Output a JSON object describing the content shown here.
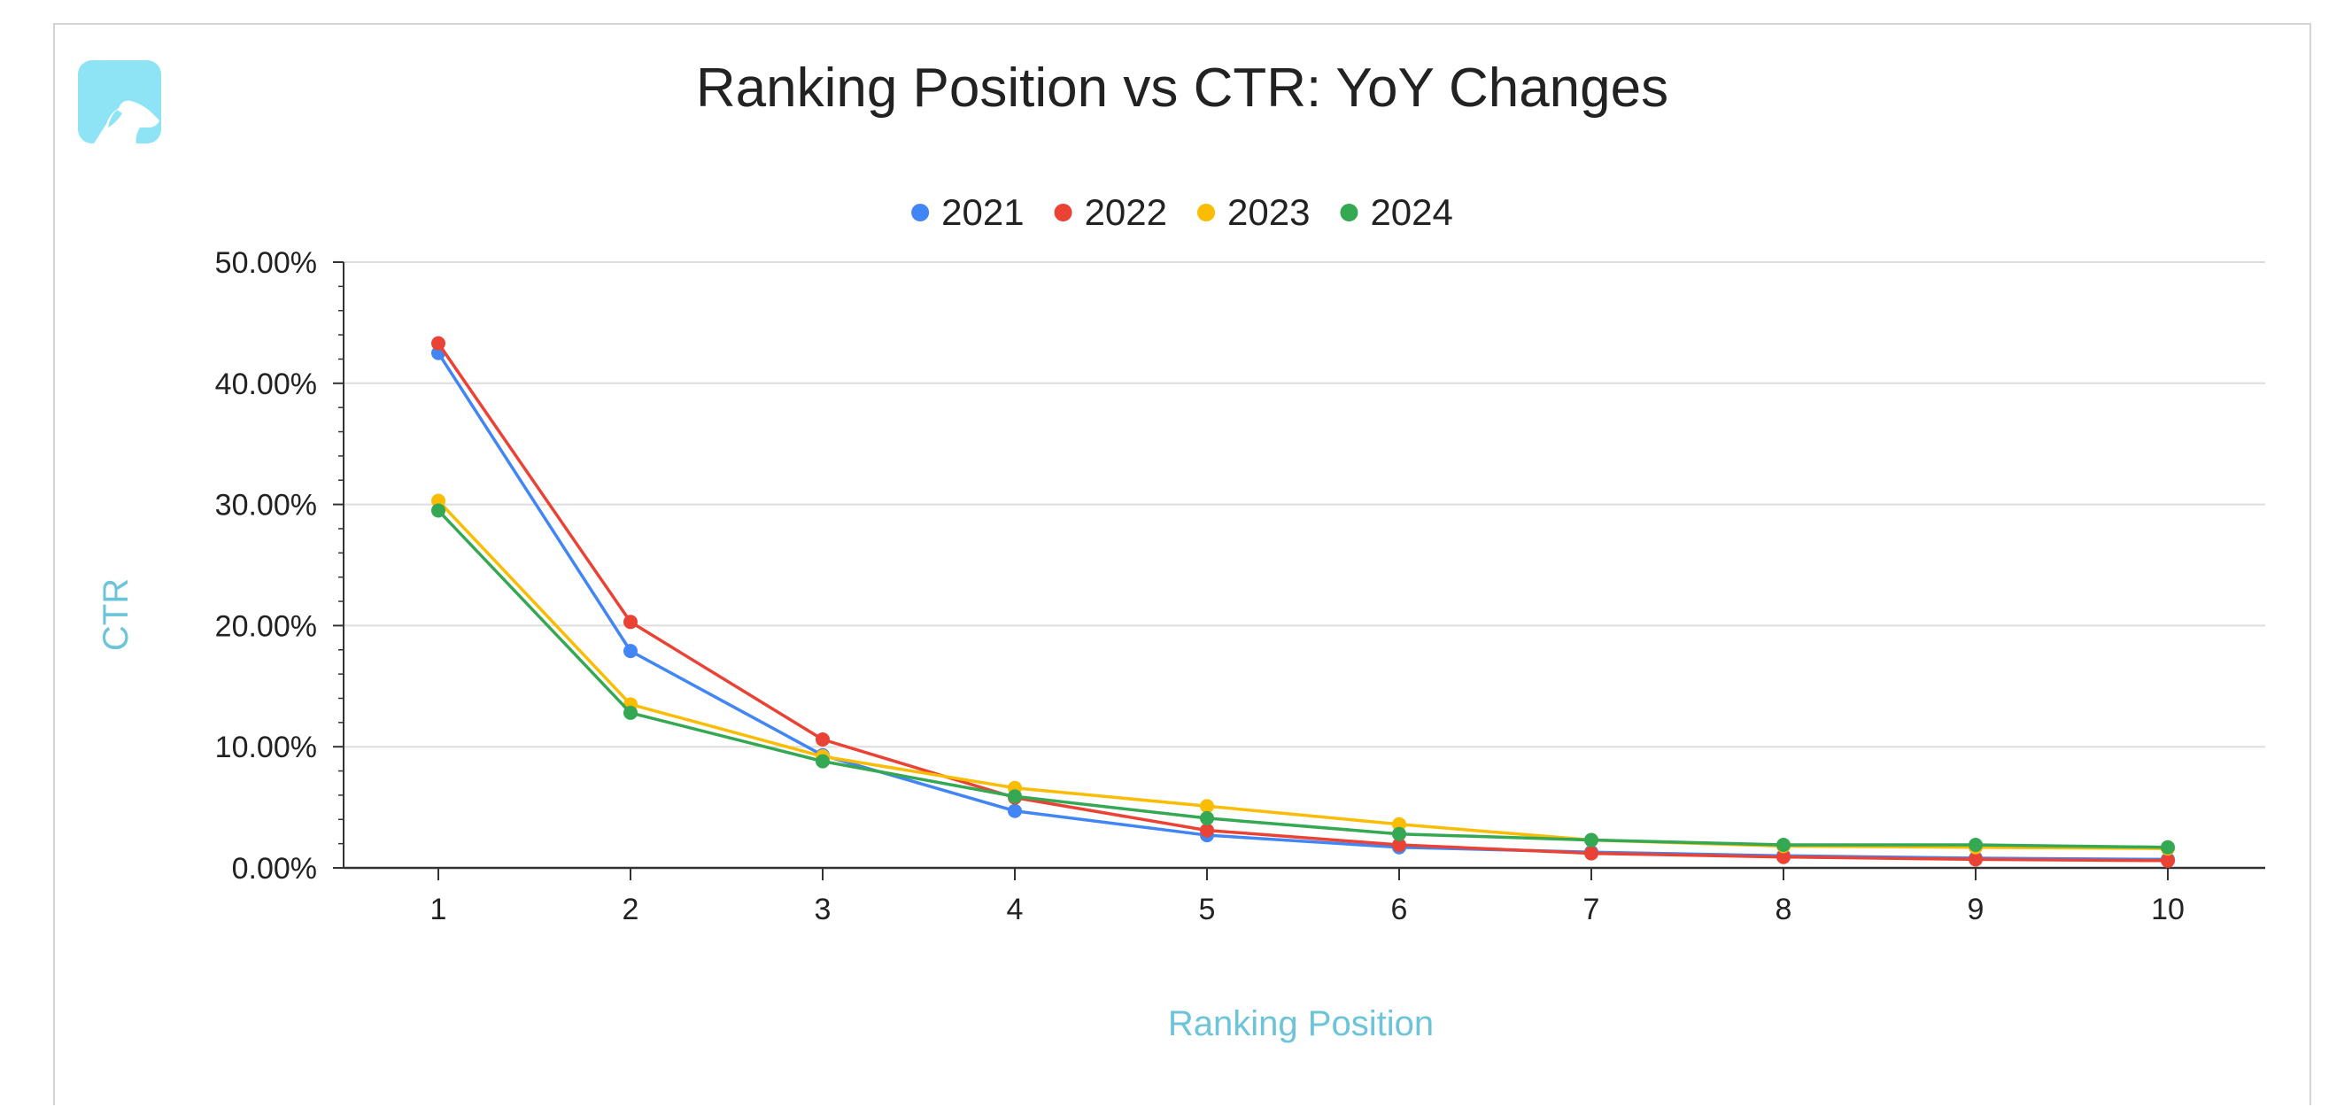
{
  "chart_data": {
    "type": "line",
    "title": "Ranking Position vs CTR: YoY Changes",
    "xlabel": "Ranking Position",
    "ylabel": "CTR",
    "categories": [
      "1",
      "2",
      "3",
      "4",
      "5",
      "6",
      "7",
      "8",
      "9",
      "10"
    ],
    "ylim": [
      0,
      0.5
    ],
    "yticks": [
      "0.00%",
      "10.00%",
      "20.00%",
      "30.00%",
      "40.00%",
      "50.00%"
    ],
    "grid": true,
    "legend_position": "top-center",
    "series": [
      {
        "name": "2021",
        "color": "#4285f4",
        "values": [
          0.425,
          0.179,
          0.093,
          0.047,
          0.027,
          0.017,
          0.013,
          0.01,
          0.008,
          0.007
        ]
      },
      {
        "name": "2022",
        "color": "#ea4335",
        "values": [
          0.433,
          0.203,
          0.106,
          0.058,
          0.031,
          0.019,
          0.012,
          0.009,
          0.007,
          0.006
        ]
      },
      {
        "name": "2023",
        "color": "#fbbc04",
        "values": [
          0.303,
          0.135,
          0.092,
          0.066,
          0.051,
          0.036,
          0.023,
          0.018,
          0.017,
          0.016
        ]
      },
      {
        "name": "2024",
        "color": "#34a853",
        "values": [
          0.295,
          0.128,
          0.088,
          0.059,
          0.041,
          0.028,
          0.023,
          0.019,
          0.019,
          0.017
        ]
      }
    ]
  },
  "colors": {
    "axis_title": "#6cc4d8",
    "gridline": "#dddddd",
    "axis_line": "#333333",
    "logo": "#8ee3f5"
  },
  "logo_icon": "dog-head-icon"
}
